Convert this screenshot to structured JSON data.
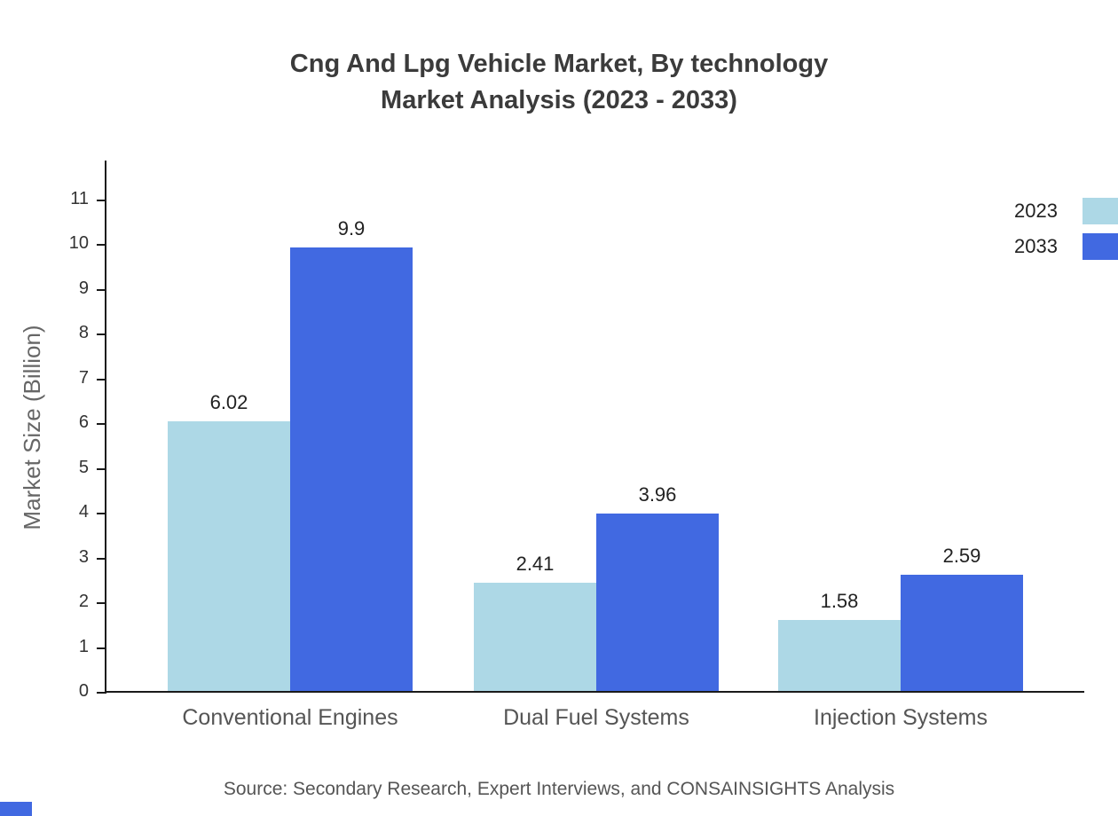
{
  "title": {
    "line1": "Cng And Lpg Vehicle Market, By technology",
    "line2": "Market Analysis (2023 - 2033)"
  },
  "source": "Source: Secondary Research, Expert Interviews, and CONSAINSIGHTS Analysis",
  "colors": {
    "series_2023": "#ADD8E6",
    "series_2033": "#4169E1",
    "axis": "#1a1a1a",
    "corner_mark": "#4169E1"
  },
  "chart_data": {
    "type": "bar",
    "title": "Cng And Lpg Vehicle Market, By technology Market Analysis (2023 - 2033)",
    "categories": [
      "Conventional Engines",
      "Dual Fuel Systems",
      "Injection Systems"
    ],
    "series": [
      {
        "name": "2023",
        "color": "#ADD8E6",
        "values": [
          6.02,
          2.41,
          1.58
        ]
      },
      {
        "name": "2033",
        "color": "#4169E1",
        "values": [
          9.9,
          3.96,
          2.59
        ]
      }
    ],
    "xlabel": "",
    "ylabel": "Market Size (Billion)",
    "ylim": [
      0,
      11.9
    ],
    "yticks": [
      0,
      1,
      2,
      3,
      4,
      5,
      6,
      7,
      8,
      9,
      10,
      11
    ],
    "grid": false,
    "data_labels": true,
    "legend_position": "top-right"
  },
  "legend": {
    "items": [
      {
        "label": "2023",
        "color": "#ADD8E6"
      },
      {
        "label": "2033",
        "color": "#4169E1"
      }
    ]
  }
}
